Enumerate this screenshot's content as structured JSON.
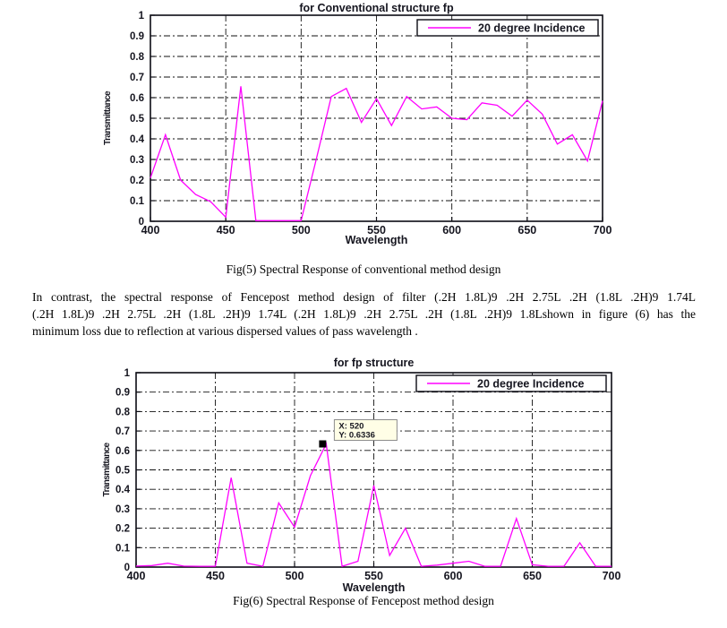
{
  "captions": {
    "fig5": "Fig(5) Spectral Response of  conventional method design",
    "fig6": "Fig(6) Spectral Response of  Fencepost method design"
  },
  "paragraph": {
    "lines": [
      "In contrast, the spectral response of Fencepost method design of filter (.2H 1.8L)9 .2H 2.75L .2H (1.8L .2H)9 1.74L",
      "(.2H 1.8L)9 .2H 2.75L .2H (1.8L .2H)9 1.74L (.2H 1.8L)9 .2H 2.75L .2H (1.8L .2H)9 1.8Lshown in figure (6) has the",
      "minimum loss due to reflection  at various dispersed values of  pass wavelength ."
    ]
  },
  "chart_data": [
    {
      "type": "line",
      "title": "for Conventional structure fp",
      "xlabel": "Wavelength",
      "ylabel": "Transmittance",
      "legend": [
        "20 degree Incidence"
      ],
      "legend_position": "top-right",
      "line_color": "#ff00ff",
      "grid": true,
      "xlim": [
        400,
        700
      ],
      "ylim": [
        0,
        1
      ],
      "x_ticks": [
        "400",
        "450",
        "500",
        "550",
        "600",
        "650",
        "700"
      ],
      "y_ticks": [
        "0",
        "0.1",
        "0.2",
        "0.3",
        "0.4",
        "0.5",
        "0.6",
        "0.7",
        "0.8",
        "0.9",
        "1"
      ],
      "x": [
        400,
        410,
        420,
        430,
        440,
        450,
        460,
        470,
        480,
        490,
        500,
        510,
        520,
        530,
        540,
        550,
        560,
        570,
        580,
        590,
        600,
        610,
        620,
        630,
        640,
        650,
        660,
        670,
        680,
        690,
        700
      ],
      "y": [
        0.21,
        0.42,
        0.2,
        0.13,
        0.095,
        0.02,
        0.655,
        0.003,
        0.003,
        0.003,
        0.003,
        0.3,
        0.605,
        0.645,
        0.48,
        0.595,
        0.465,
        0.605,
        0.545,
        0.555,
        0.5,
        0.493,
        0.575,
        0.563,
        0.51,
        0.588,
        0.52,
        0.375,
        0.42,
        0.293,
        0.585
      ]
    },
    {
      "type": "line",
      "title": "for fp structure",
      "xlabel": "Wavelength",
      "ylabel": "Transmittance",
      "legend": [
        "20 degree Incidence"
      ],
      "legend_position": "top-right",
      "line_color": "#ff00ff",
      "grid": true,
      "xlim": [
        400,
        700
      ],
      "ylim": [
        0,
        1
      ],
      "x_ticks": [
        "400",
        "450",
        "500",
        "550",
        "600",
        "650",
        "700"
      ],
      "y_ticks": [
        "0",
        "0.1",
        "0.2",
        "0.3",
        "0.4",
        "0.5",
        "0.6",
        "0.7",
        "0.8",
        "0.9",
        "1"
      ],
      "datatip": {
        "x": 520,
        "y": 0.6336,
        "x_label": "X: 520",
        "y_label": "Y: 0.6336"
      },
      "x": [
        400,
        410,
        420,
        430,
        440,
        450,
        460,
        470,
        480,
        490,
        500,
        510,
        520,
        530,
        540,
        550,
        560,
        570,
        580,
        590,
        600,
        610,
        620,
        630,
        640,
        650,
        660,
        670,
        680,
        690,
        700
      ],
      "y": [
        0.005,
        0.008,
        0.02,
        0.005,
        0.004,
        0.004,
        0.46,
        0.02,
        0.004,
        0.33,
        0.205,
        0.47,
        0.6336,
        0.004,
        0.03,
        0.42,
        0.06,
        0.2,
        0.004,
        0.01,
        0.02,
        0.03,
        0.004,
        0.004,
        0.25,
        0.012,
        0.004,
        0.004,
        0.125,
        0.004,
        0.004
      ]
    }
  ]
}
